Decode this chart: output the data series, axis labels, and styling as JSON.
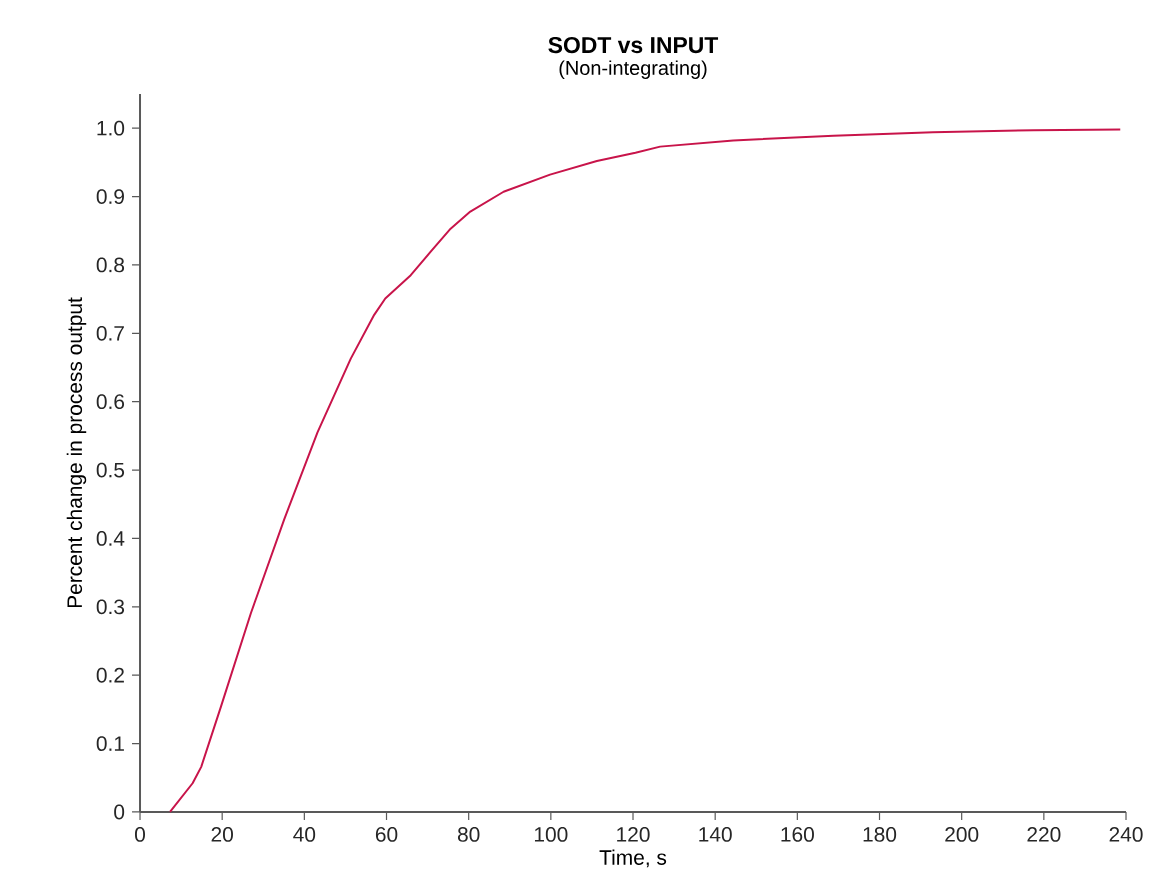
{
  "chart_data": {
    "type": "line",
    "title": "SODT vs INPUT",
    "subtitle": "(Non-integrating)",
    "xlabel": "Time, s",
    "ylabel": "Percent change in process output",
    "xlim": [
      0,
      240
    ],
    "ylim": [
      0,
      1.05
    ],
    "xticks": [
      0,
      20,
      40,
      60,
      80,
      100,
      120,
      140,
      160,
      180,
      200,
      220,
      240
    ],
    "yticks": [
      0,
      0.1,
      0.2,
      0.3,
      0.4,
      0.5,
      0.6,
      0.7,
      0.8,
      0.9,
      {
        "value": 1.0,
        "label": "1.0"
      }
    ],
    "grid": false,
    "marker": "none",
    "line_style": "solid",
    "series": [
      {
        "color": "#c8144a",
        "x": [
          7.3,
          12.8,
          14.9,
          19.7,
          27,
          35.1,
          43.2,
          51.3,
          57,
          59.7,
          65.9,
          70.7,
          75.6,
          80.4,
          88.5,
          99.8,
          111.2,
          120.6,
          126.6,
          144.4,
          168.8,
          193,
          217.5,
          238.6
        ],
        "values": [
          0,
          0.042,
          0.066,
          0.154,
          0.291,
          0.428,
          0.555,
          0.663,
          0.727,
          0.751,
          0.785,
          0.819,
          0.853,
          0.878,
          0.907,
          0.932,
          0.952,
          0.964,
          0.973,
          0.982,
          0.989,
          0.994,
          0.997,
          0.998
        ]
      }
    ]
  }
}
